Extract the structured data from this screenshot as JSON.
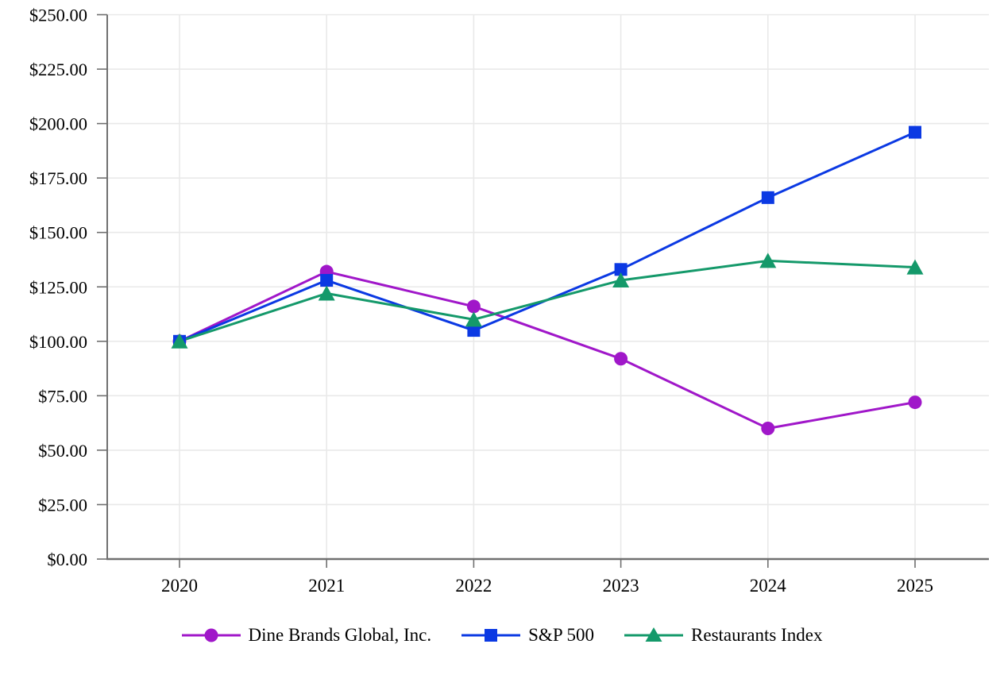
{
  "chart_data": {
    "type": "line",
    "title": "",
    "categories": [
      "2020",
      "2021",
      "2022",
      "2023",
      "2024",
      "2025"
    ],
    "series": [
      {
        "name": "Dine Brands Global, Inc.",
        "color": "#A017C9",
        "marker": "circle",
        "values": [
          100,
          132,
          116,
          92,
          60,
          72
        ]
      },
      {
        "name": "S&P 500",
        "color": "#0B39E3",
        "marker": "square",
        "values": [
          100,
          128,
          105,
          133,
          166,
          196
        ]
      },
      {
        "name": "Restaurants Index",
        "color": "#14996A",
        "marker": "triangle",
        "values": [
          100,
          122,
          110,
          128,
          137,
          134
        ]
      }
    ],
    "xlabel": "",
    "ylabel": "",
    "ylim": [
      0,
      250
    ],
    "y_tick_step": 25,
    "y_tick_labels": [
      "$0.00",
      "$25.00",
      "$50.00",
      "$75.00",
      "$100.00",
      "$125.00",
      "$150.00",
      "$175.00",
      "$200.00",
      "$225.00",
      "$250.00"
    ],
    "grid": true,
    "legend_position": "bottom",
    "axis_color": "#707070",
    "grid_color": "#E9E9E9",
    "text_color": "#000000"
  }
}
